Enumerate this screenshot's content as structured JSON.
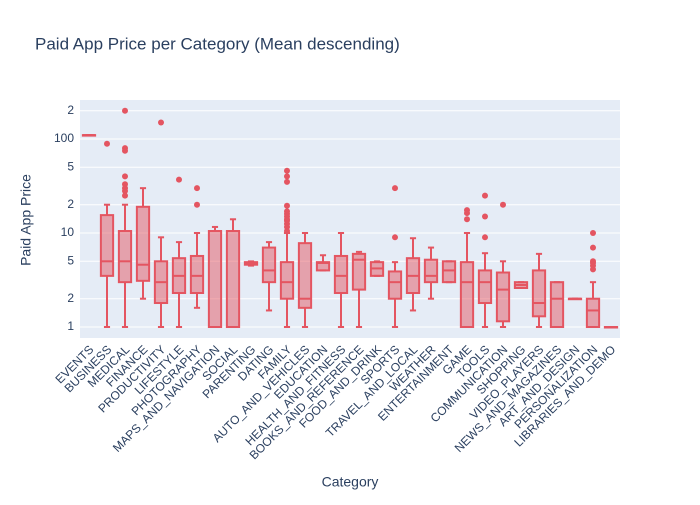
{
  "chart_data": {
    "type": "box",
    "title": "Paid App Price per Category (Mean descending)",
    "x_label": "Category",
    "y_label": "Paid App Price",
    "log_scale": true,
    "grid": true,
    "color": "#e45561",
    "categories": [
      "EVENTS",
      "BUSINESS",
      "MEDICAL",
      "FINANCE",
      "PRODUCTIVITY",
      "LIFESTYLE",
      "PHOTOGRAPHY",
      "MAPS_AND_NAVIGATION",
      "SOCIAL",
      "PARENTING",
      "DATING",
      "FAMILY",
      "AUTO_AND_VEHICLES",
      "EDUCATION",
      "HEALTH_AND_FITNESS",
      "BOOKS_AND_REFERENCE",
      "FOOD_AND_DRINK",
      "SPORTS",
      "TRAVEL_AND_LOCAL",
      "WEATHER",
      "ENTERTAINMENT",
      "GAME",
      "TOOLS",
      "COMMUNICATION",
      "SHOPPING",
      "VIDEO_PLAYERS",
      "NEWS_AND_MAGAZINES",
      "ART_AND_DESIGN",
      "PERSONALIZATION",
      "LIBRARIES_AND_DEMO"
    ],
    "min": [
      110,
      1,
      1,
      2,
      1,
      1,
      1.6,
      1,
      1,
      4.5,
      1.5,
      1,
      1,
      4,
      1,
      1,
      3.5,
      1,
      1.5,
      2,
      3,
      1,
      1,
      1,
      2.6,
      1,
      1,
      2,
      1,
      1
    ],
    "q1": [
      110,
      3.5,
      3,
      3.1,
      1.8,
      2.3,
      2.3,
      1,
      1,
      4.6,
      3,
      2,
      1.6,
      4,
      2.3,
      2.5,
      3.5,
      2,
      2.3,
      3,
      3,
      1,
      1.8,
      1.15,
      2.6,
      1.3,
      1,
      2,
      1,
      1
    ],
    "median": [
      110,
      5,
      5,
      4.6,
      3,
      3.5,
      3.5,
      1,
      1,
      4.8,
      4,
      3,
      2,
      4.8,
      3.5,
      5.2,
      4.2,
      3,
      3.5,
      3.5,
      4,
      3,
      3,
      2.5,
      2.8,
      1.8,
      2,
      2,
      1.5,
      1
    ],
    "q3": [
      110,
      15.5,
      10.5,
      19,
      5,
      5.4,
      5.7,
      10.5,
      10.5,
      4.9,
      7,
      4.9,
      7.8,
      4.9,
      5.7,
      6,
      4.9,
      3.9,
      5.4,
      5.2,
      5,
      4.9,
      4,
      3.8,
      3,
      4,
      3,
      2,
      2,
      1
    ],
    "max": [
      110,
      20,
      20,
      30,
      9,
      8,
      10,
      11.6,
      14,
      4.99,
      8,
      10,
      10,
      5.8,
      10,
      6.3,
      4.99,
      4.9,
      8.8,
      7,
      5,
      10,
      6.1,
      5,
      3,
      6,
      3,
      2,
      3,
      1
    ],
    "outliers": [
      [],
      [
        89
      ],
      [
        200,
        80,
        75,
        40,
        33,
        30,
        28,
        25
      ],
      [],
      [
        150
      ],
      [
        37
      ],
      [
        30,
        20
      ],
      [],
      [],
      [],
      [],
      [
        46,
        40,
        35,
        19.5,
        17,
        16,
        15,
        14,
        13.5,
        12.5,
        11.6,
        10.5
      ],
      [],
      [],
      [],
      [],
      [],
      [
        30,
        9
      ],
      [],
      [],
      [],
      [
        17.5,
        16.3,
        14
      ],
      [
        25,
        15,
        9
      ],
      [
        20
      ],
      [],
      [],
      [],
      [],
      [
        10,
        7,
        5,
        4.8,
        4.5,
        4.1
      ],
      []
    ],
    "ylim": [
      0.764,
      260
    ],
    "yticks": [
      1,
      2,
      5,
      10,
      {
        "value": 20,
        "label": "2"
      },
      {
        "value": 50,
        "label": "5"
      },
      100,
      {
        "value": 200,
        "label": "2"
      }
    ]
  }
}
